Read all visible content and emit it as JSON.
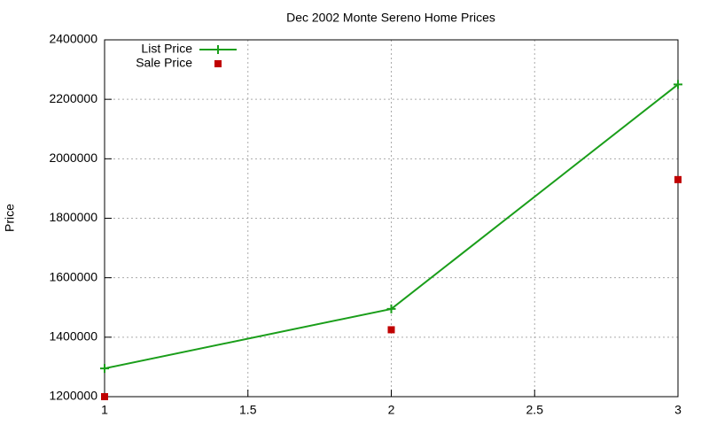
{
  "chart_data": {
    "type": "line",
    "title": "Dec 2002 Monte Sereno Home Prices",
    "y_label": "Price",
    "x": [
      1,
      2,
      3
    ],
    "series": [
      {
        "name": "List Price",
        "color": "#1a9e1a",
        "mode": "lines+points",
        "values": [
          1295000,
          1495000,
          2250000
        ]
      },
      {
        "name": "Sale Price",
        "color": "#c00000",
        "mode": "points",
        "values": [
          1200000,
          1425000,
          1930000
        ]
      }
    ],
    "xlim": [
      1,
      3
    ],
    "xticks": [
      1,
      1.5,
      2,
      2.5,
      3
    ],
    "ylim": [
      1200000,
      2400000
    ],
    "yticks": [
      1200000,
      1400000,
      1600000,
      1800000,
      2000000,
      2200000,
      2400000
    ],
    "grid": true,
    "legend": "top-left"
  }
}
